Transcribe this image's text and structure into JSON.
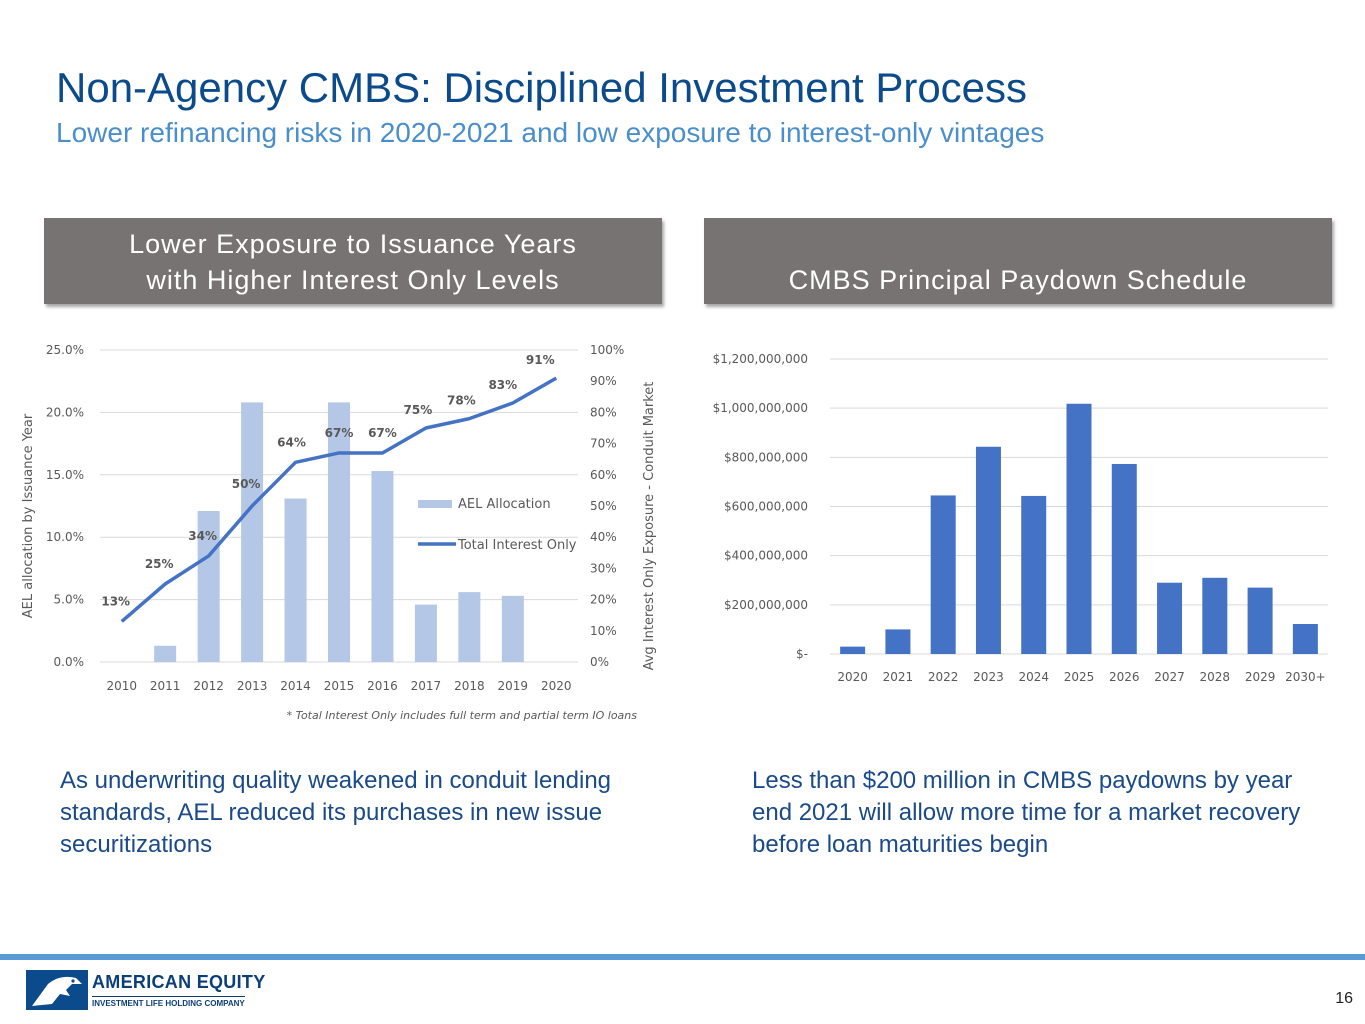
{
  "slide": {
    "title": "Non-Agency CMBS: Disciplined Investment Process",
    "subtitle": "Lower refinancing risks in 2020-2021 and low exposure to interest-only vintages",
    "page_number": "16"
  },
  "left_panel": {
    "header_line1": "Lower Exposure to Issuance Years",
    "header_line2": "with Higher Interest Only Levels",
    "caption": "As underwriting quality weakened in conduit lending standards, AEL reduced its purchases in new issue securitizations"
  },
  "right_panel": {
    "header": "CMBS Principal Paydown Schedule",
    "caption": "Less than $200 million in CMBS paydowns by year end 2021 will allow more time for a market recovery before loan maturities begin"
  },
  "logo": {
    "name": "AMERICAN EQUITY",
    "tagline": "INVESTMENT LIFE HOLDING COMPANY"
  },
  "chart_data": [
    {
      "type": "bar+line",
      "categories": [
        "2010",
        "2011",
        "2012",
        "2013",
        "2014",
        "2015",
        "2016",
        "2017",
        "2018",
        "2019",
        "2020"
      ],
      "series": [
        {
          "name": "AEL Allocation",
          "type": "bar",
          "axis": "left",
          "values": [
            0,
            1.3,
            12.1,
            20.8,
            13.1,
            20.8,
            15.3,
            4.6,
            5.6,
            5.3,
            0
          ]
        },
        {
          "name": "Total Interest Only",
          "type": "line",
          "axis": "right",
          "values": [
            13,
            25,
            34,
            50,
            64,
            67,
            67,
            75,
            78,
            83,
            91
          ],
          "data_labels": [
            "13%",
            "25%",
            "34%",
            "50%",
            "64%",
            "67%",
            "67%",
            "75%",
            "78%",
            "83%",
            "91%"
          ]
        }
      ],
      "y_left_ticks": [
        "0.0%",
        "5.0%",
        "10.0%",
        "15.0%",
        "20.0%",
        "25.0%"
      ],
      "y_left_range": [
        0,
        25
      ],
      "y_right_ticks": [
        "0%",
        "10%",
        "20%",
        "30%",
        "40%",
        "50%",
        "60%",
        "70%",
        "80%",
        "90%",
        "100%"
      ],
      "y_right_range": [
        0,
        100
      ],
      "ylabel_left": "AEL allocation by Issuance Year",
      "ylabel_right": "Avg Interest Only Exposure - Conduit Market",
      "footnote": "* Total Interest Only includes full term and partial term IO loans",
      "colors": {
        "bar": "#b4c7e7",
        "line": "#4472c4",
        "grid": "#d9d9d9",
        "text": "#595959"
      }
    },
    {
      "type": "bar",
      "categories": [
        "2020",
        "2021",
        "2022",
        "2023",
        "2024",
        "2025",
        "2026",
        "2027",
        "2028",
        "2029",
        "2030+"
      ],
      "values": [
        30000000,
        100000000,
        645000000,
        843000000,
        643000000,
        1018000000,
        773000000,
        290000000,
        310000000,
        270000000,
        122000000
      ],
      "y_ticks": [
        "$-",
        "$200,000,000",
        "$400,000,000",
        "$600,000,000",
        "$800,000,000",
        "$1,000,000,000",
        "$1,200,000,000"
      ],
      "ylim": [
        0,
        1200000000
      ],
      "colors": {
        "bar": "#4472c4",
        "grid": "#d9d9d9",
        "text": "#595959"
      }
    }
  ]
}
